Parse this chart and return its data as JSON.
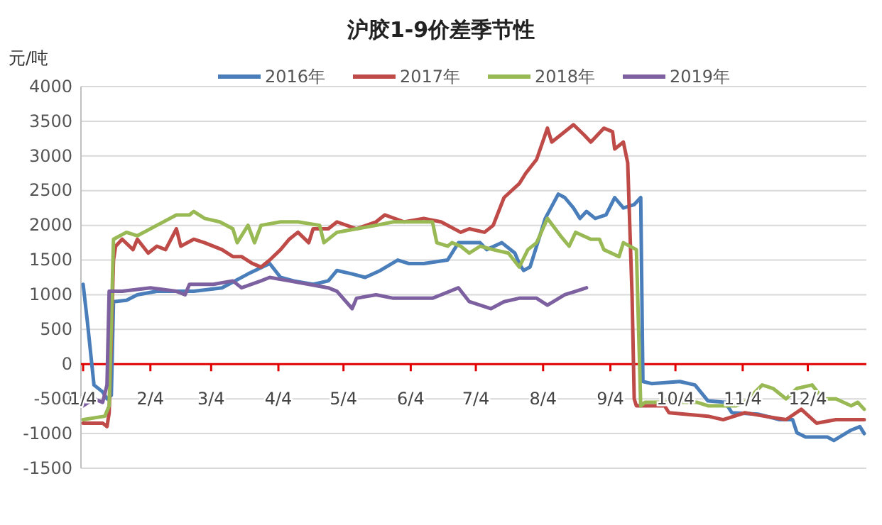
{
  "chart_data": {
    "type": "line",
    "title": "沪胶1-9价差季节性",
    "ylabel": "元/吨",
    "legend": "top",
    "grid": "y",
    "marker": "none",
    "line_style": "solid",
    "xlim": [
      "--01-03",
      "--12-31"
    ],
    "xticks": [
      {
        "value": "--01-04",
        "label": "1/4"
      },
      {
        "value": "--02-04",
        "label": "2/4"
      },
      {
        "value": "--03-04",
        "label": "3/4"
      },
      {
        "value": "--04-04",
        "label": "4/4"
      },
      {
        "value": "--05-04",
        "label": "5/4"
      },
      {
        "value": "--06-04",
        "label": "6/4"
      },
      {
        "value": "--07-04",
        "label": "7/4"
      },
      {
        "value": "--08-04",
        "label": "8/4"
      },
      {
        "value": "--09-04",
        "label": "9/4"
      },
      {
        "value": "--10-04",
        "label": "10/4"
      },
      {
        "value": "--11-04",
        "label": "11/4"
      },
      {
        "value": "--12-04",
        "label": "12/4"
      }
    ],
    "ylim": [
      -1500,
      4000
    ],
    "yticks": [
      -1500,
      -1000,
      -500,
      0,
      500,
      1000,
      1500,
      2000,
      2500,
      3000,
      3500,
      4000
    ],
    "series": [
      {
        "name": "2016年",
        "color": "#4a7ebb",
        "x": [
          "--01-04",
          "--01-06",
          "--01-09",
          "--01-13",
          "--01-15",
          "--01-17",
          "--01-18",
          "--01-24",
          "--01-29",
          "--02-07",
          "--02-16",
          "--02-24",
          "--03-09",
          "--03-21",
          "--03-31",
          "--04-05",
          "--04-11",
          "--04-20",
          "--04-27",
          "--05-01",
          "--05-08",
          "--05-14",
          "--05-21",
          "--05-29",
          "--06-03",
          "--06-10",
          "--06-21",
          "--06-26",
          "--07-06",
          "--07-09",
          "--07-16",
          "--07-22",
          "--07-24",
          "--07-26",
          "--07-29",
          "--08-01",
          "--08-05",
          "--08-11",
          "--08-14",
          "--08-18",
          "--08-21",
          "--08-24",
          "--08-28",
          "--09-02",
          "--09-06",
          "--09-10",
          "--09-15",
          "--09-18",
          "--09-19",
          "--09-23",
          "--10-06",
          "--10-13",
          "--10-19",
          "--10-27",
          "--10-30",
          "--11-11",
          "--11-21",
          "--11-27",
          "--11-29",
          "--12-03",
          "--12-13",
          "--12-16",
          "--12-24",
          "--12-28",
          "--12-30"
        ],
        "values": [
          1150,
          600,
          -300,
          -400,
          -500,
          -450,
          900,
          920,
          1000,
          1050,
          1050,
          1050,
          1100,
          1300,
          1450,
          1250,
          1200,
          1150,
          1200,
          1350,
          1300,
          1250,
          1350,
          1500,
          1450,
          1450,
          1500,
          1750,
          1750,
          1650,
          1750,
          1600,
          1450,
          1350,
          1400,
          1700,
          2100,
          2450,
          2400,
          2250,
          2100,
          2200,
          2100,
          2150,
          2400,
          2250,
          2300,
          2400,
          -250,
          -280,
          -250,
          -300,
          -530,
          -550,
          -700,
          -720,
          -800,
          -800,
          -990,
          -1050,
          -1050,
          -1100,
          -950,
          -900,
          -1000
        ]
      },
      {
        "name": "2017年",
        "color": "#be4b48",
        "x": [
          "--01-04",
          "--01-13",
          "--01-15",
          "--01-16",
          "--01-18",
          "--01-19",
          "--01-22",
          "--01-27",
          "--01-29",
          "--02-03",
          "--02-07",
          "--02-11",
          "--02-16",
          "--02-18",
          "--02-24",
          "--03-01",
          "--03-09",
          "--03-14",
          "--03-18",
          "--03-23",
          "--03-27",
          "--03-31",
          "--04-05",
          "--04-09",
          "--04-13",
          "--04-18",
          "--04-20",
          "--04-27",
          "--05-01",
          "--05-10",
          "--05-19",
          "--05-23",
          "--06-01",
          "--06-10",
          "--06-18",
          "--06-27",
          "--07-01",
          "--07-08",
          "--07-12",
          "--07-17",
          "--07-24",
          "--07-27",
          "--08-01",
          "--08-06",
          "--08-08",
          "--08-12",
          "--08-18",
          "--08-23",
          "--08-26",
          "--09-01",
          "--09-05",
          "--09-06",
          "--09-10",
          "--09-12",
          "--09-14",
          "--09-15",
          "--09-16",
          "--09-29",
          "--10-01",
          "--10-19",
          "--10-26",
          "--11-05",
          "--11-14",
          "--11-24",
          "--12-01",
          "--12-08",
          "--12-17",
          "--12-30"
        ],
        "values": [
          -850,
          -850,
          -900,
          -700,
          1500,
          1700,
          1800,
          1650,
          1800,
          1600,
          1700,
          1650,
          1950,
          1700,
          1800,
          1750,
          1650,
          1550,
          1550,
          1450,
          1400,
          1500,
          1650,
          1800,
          1900,
          1750,
          1950,
          1950,
          2050,
          1950,
          2050,
          2150,
          2050,
          2100,
          2050,
          1900,
          1950,
          1900,
          2000,
          2400,
          2600,
          2750,
          2950,
          3400,
          3200,
          3300,
          3450,
          3300,
          3200,
          3400,
          3350,
          3100,
          3200,
          2900,
          1000,
          -500,
          -600,
          -600,
          -700,
          -750,
          -800,
          -700,
          -750,
          -800,
          -650,
          -850,
          -800,
          -800
        ]
      },
      {
        "name": "2018年",
        "color": "#98b954",
        "x": [
          "--01-04",
          "--01-14",
          "--01-16",
          "--01-18",
          "--01-24",
          "--01-29",
          "--02-07",
          "--02-16",
          "--02-22",
          "--02-24",
          "--03-01",
          "--03-08",
          "--03-14",
          "--03-16",
          "--03-21",
          "--03-24",
          "--03-27",
          "--04-05",
          "--04-13",
          "--04-23",
          "--04-25",
          "--05-01",
          "--05-10",
          "--05-19",
          "--05-27",
          "--06-05",
          "--06-14",
          "--06-16",
          "--06-21",
          "--06-23",
          "--06-27",
          "--07-01",
          "--07-06",
          "--07-12",
          "--07-19",
          "--07-24",
          "--07-28",
          "--08-01",
          "--08-06",
          "--08-12",
          "--08-16",
          "--08-19",
          "--08-26",
          "--08-30",
          "--09-01",
          "--09-08",
          "--09-10",
          "--09-16",
          "--09-18",
          "--09-20",
          "--10-14",
          "--10-19",
          "--11-01",
          "--11-05",
          "--11-13",
          "--11-18",
          "--11-24",
          "--11-29",
          "--12-06",
          "--12-11",
          "--12-17",
          "--12-24",
          "--12-27",
          "--12-30"
        ],
        "values": [
          -800,
          -750,
          -600,
          1800,
          1900,
          1850,
          2000,
          2150,
          2150,
          2200,
          2100,
          2050,
          1950,
          1750,
          2000,
          1750,
          2000,
          2050,
          2050,
          2000,
          1750,
          1900,
          1950,
          2000,
          2050,
          2050,
          2050,
          1750,
          1700,
          1750,
          1700,
          1600,
          1700,
          1650,
          1600,
          1400,
          1650,
          1750,
          2100,
          1850,
          1700,
          1900,
          1800,
          1800,
          1650,
          1550,
          1750,
          1650,
          -600,
          -550,
          -550,
          -600,
          -600,
          -550,
          -300,
          -350,
          -500,
          -350,
          -300,
          -500,
          -500,
          -600,
          -550,
          -650
        ]
      },
      {
        "name": "2019年",
        "color": "#7d60a0",
        "x": [
          "--01-04",
          "--01-09",
          "--01-13",
          "--01-15",
          "--01-16",
          "--01-22",
          "--02-04",
          "--02-16",
          "--02-20",
          "--02-22",
          "--03-05",
          "--03-14",
          "--03-18",
          "--03-27",
          "--03-31",
          "--04-09",
          "--04-18",
          "--04-27",
          "--05-01",
          "--05-08",
          "--05-10",
          "--05-19",
          "--05-27",
          "--06-05",
          "--06-14",
          "--06-18",
          "--06-26",
          "--07-01",
          "--07-11",
          "--07-17",
          "--07-24",
          "--08-01",
          "--08-06",
          "--08-14",
          "--08-19",
          "--08-24"
        ],
        "values": [
          -600,
          -500,
          -550,
          -300,
          1050,
          1050,
          1100,
          1050,
          1000,
          1150,
          1150,
          1200,
          1100,
          1200,
          1250,
          1200,
          1150,
          1100,
          1050,
          800,
          950,
          1000,
          950,
          950,
          950,
          1000,
          1100,
          900,
          800,
          900,
          950,
          950,
          850,
          1000,
          1050,
          1100
        ]
      }
    ]
  }
}
